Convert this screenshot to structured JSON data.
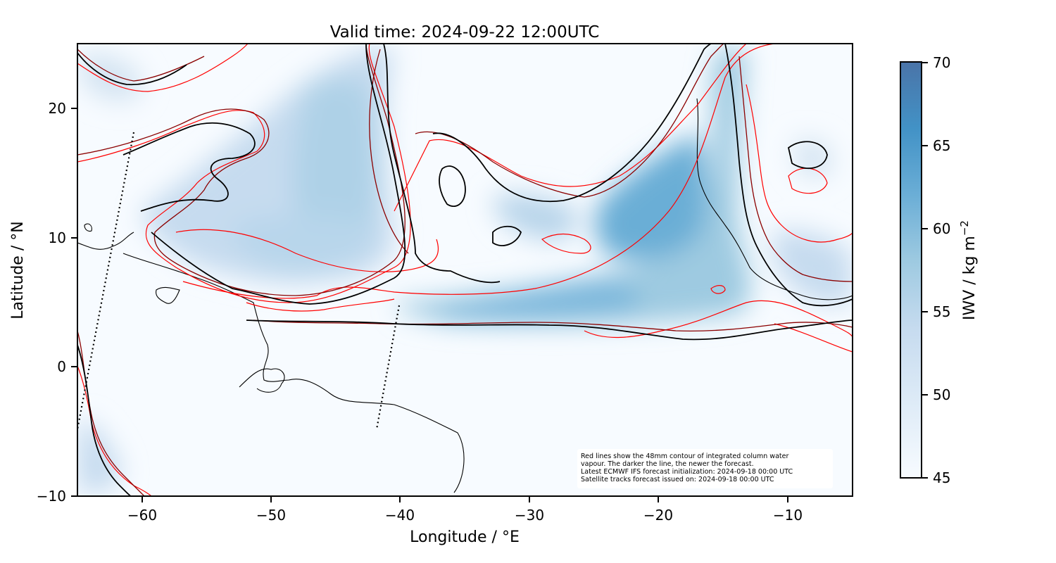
{
  "title": "Valid time: 2024-09-22 12:00UTC",
  "xlabel": "Longitude / °E",
  "ylabel": "Latitude / °N",
  "colorbar": {
    "label_main": "IWV / kg m",
    "label_sup": "−2",
    "ticks": [
      "70",
      "65",
      "60",
      "55",
      "50",
      "45"
    ],
    "min": 45,
    "max": 70,
    "colors": [
      "#f7fbff",
      "#deebf7",
      "#c6dbef",
      "#9ecae1",
      "#6baed6",
      "#4292c6",
      "#4a74a8"
    ]
  },
  "x_ticks": [
    "−60",
    "−50",
    "−40",
    "−30",
    "−20",
    "−10"
  ],
  "y_ticks": [
    "20",
    "10",
    "0",
    "−10"
  ],
  "annotation": {
    "line1": "Red lines show the 48mm contour of integrated column water",
    "line2": "vapour. The darker the line, the newer the forecast.",
    "line3": "Latest ECMWF IFS forecast initialization: 2024-09-18 00:00 UTC",
    "line4": "Satellite tracks forecast issued on: 2024-09-18 00:00 UTC"
  },
  "chart_data": {
    "type": "heatmap",
    "title": "Valid time: 2024-09-22 12:00UTC",
    "xlabel": "Longitude / °E",
    "ylabel": "Latitude / °N",
    "xlim": [
      -65,
      -5
    ],
    "ylim": [
      -10,
      25
    ],
    "x_ticks": [
      -60,
      -50,
      -40,
      -30,
      -20,
      -10
    ],
    "y_ticks": [
      20,
      10,
      0,
      -10
    ],
    "colorbar_label": "IWV / kg m−2",
    "colorbar_range": [
      45,
      70
    ],
    "colorbar_ticks": [
      45,
      50,
      55,
      60,
      65,
      70
    ],
    "contour_level_mm": 48,
    "contour_colors": [
      "#ff0000",
      "#8b0000",
      "#000000"
    ],
    "satellite_tracks": [
      {
        "lon": [
          -61,
          -65
        ],
        "lat": [
          18,
          -5
        ]
      },
      {
        "lon": [
          -40,
          -42
        ],
        "lat": [
          4.8,
          -5
        ]
      }
    ],
    "iwv_maxima": [
      {
        "lon": -48,
        "lat": 14,
        "iwv": 56
      },
      {
        "lon": -20,
        "lat": 13,
        "iwv": 64
      },
      {
        "lon": -30,
        "lat": 5,
        "iwv": 62
      },
      {
        "lon": -37,
        "lat": 4,
        "iwv": 58
      }
    ]
  }
}
